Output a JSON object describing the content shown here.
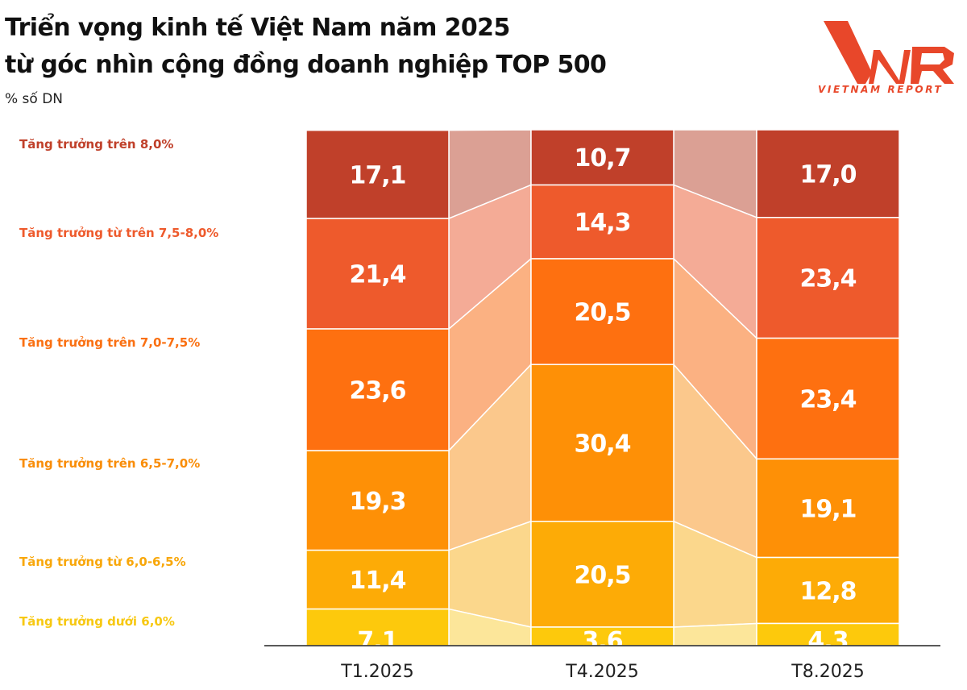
{
  "header": {
    "title_line1": "Triển vọng kinh tế Việt Nam năm 2025",
    "title_line2": "từ góc nhìn cộng đồng doanh nghiệp TOP 500",
    "unit": "% số DN"
  },
  "logo": {
    "mark": "VNR",
    "text": "VIETNAM REPORT",
    "color": "#e8472a"
  },
  "legend": [
    {
      "label": "Tăng trưởng trên 8,0%",
      "color": "#c0402a"
    },
    {
      "label": "Tăng trưởng từ trên 7,5-8,0%",
      "color": "#ee5a2c"
    },
    {
      "label": "Tăng trưởng trên 7,0-7,5%",
      "color": "#fa7012"
    },
    {
      "label": "Tăng trưởng trên 6,5-7,0%",
      "color": "#f98d08"
    },
    {
      "label": "Tăng trưởng từ 6,0-6,5%",
      "color": "#f8a70a"
    },
    {
      "label": "Tăng trưởng dưới 6,0%",
      "color": "#f7c812"
    }
  ],
  "chart_data": {
    "type": "bar",
    "stacked": true,
    "title": "Triển vọng kinh tế Việt Nam năm 2025 từ góc nhìn cộng đồng doanh nghiệp TOP 500",
    "ylabel": "% số DN",
    "xlabel": "",
    "categories": [
      "T1.2025",
      "T4.2025",
      "T8.2025"
    ],
    "series": [
      {
        "name": "Tăng trưởng trên 8,0%",
        "values": [
          17.1,
          10.7,
          17.0
        ],
        "labels": [
          "17,1",
          "10,7",
          "17,0"
        ],
        "color": "#c0402a",
        "connector": "#dba094"
      },
      {
        "name": "Tăng trưởng từ trên 7,5-8,0%",
        "values": [
          21.4,
          14.3,
          23.4
        ],
        "labels": [
          "21,4",
          "14,3",
          "23,4"
        ],
        "color": "#ee5a2c",
        "connector": "#f4ab96"
      },
      {
        "name": "Tăng trưởng trên 7,0-7,5%",
        "values": [
          23.6,
          20.5,
          23.4
        ],
        "labels": [
          "23,6",
          "20,5",
          "23,4"
        ],
        "color": "#fe7010",
        "connector": "#fbb182"
      },
      {
        "name": "Tăng trưởng trên 6,5-7,0%",
        "values": [
          19.3,
          30.4,
          19.1
        ],
        "labels": [
          "19,3",
          "30,4",
          "19,1"
        ],
        "color": "#fe9006",
        "connector": "#fbc88c"
      },
      {
        "name": "Tăng trưởng từ 6,0-6,5%",
        "values": [
          11.4,
          20.5,
          12.8
        ],
        "labels": [
          "11,4",
          "20,5",
          "12,8"
        ],
        "color": "#fdab06",
        "connector": "#fbd78c"
      },
      {
        "name": "Tăng trưởng dưới 6,0%",
        "values": [
          7.1,
          3.6,
          4.3
        ],
        "labels": [
          "7,1",
          "3,6",
          "4,3"
        ],
        "color": "#fdc90c",
        "connector": "#fce69a"
      }
    ],
    "ylim": [
      0,
      100
    ],
    "grid": false,
    "legend_position": "left"
  }
}
